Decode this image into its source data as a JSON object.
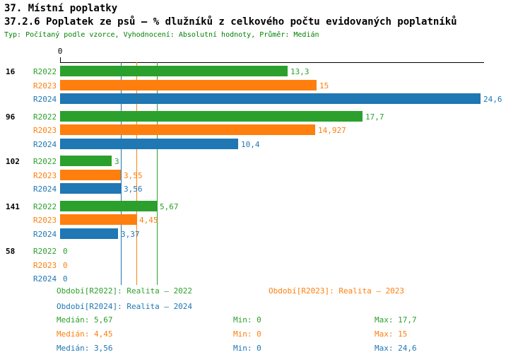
{
  "header": {
    "title": "37. Místní poplatky",
    "subtitle": "37.2.6 Poplatek ze psů – % dlužníků z celkového počtu evidovaných poplatníků",
    "meta": "Typ: Počítaný podle vzorce, Vyhodnocení: Absolutní hodnoty, Průměr: Medián"
  },
  "colors": {
    "R2022": "#2ca02c",
    "R2023": "#ff7f0e",
    "R2024": "#1f77b4",
    "meta_text": "#008000",
    "axis": "#000000"
  },
  "chart_data": {
    "type": "bar",
    "orientation": "horizontal",
    "xlim": [
      0,
      24.8
    ],
    "x_axis_zero_label": "0",
    "grid": false,
    "series": [
      "R2022",
      "R2023",
      "R2024"
    ],
    "groups": [
      {
        "label": "16",
        "values": [
          13.3,
          15,
          24.6
        ],
        "value_labels": [
          "13,3",
          "15",
          "24,6"
        ]
      },
      {
        "label": "96",
        "values": [
          17.7,
          14.927,
          10.4
        ],
        "value_labels": [
          "17,7",
          "14,927",
          "10,4"
        ]
      },
      {
        "label": "102",
        "values": [
          3,
          3.55,
          3.56
        ],
        "value_labels": [
          "3",
          "3,55",
          "3,56"
        ]
      },
      {
        "label": "141",
        "values": [
          5.67,
          4.45,
          3.37
        ],
        "value_labels": [
          "5,67",
          "4,45",
          "3,37"
        ]
      },
      {
        "label": "58",
        "values": [
          0,
          0,
          0
        ],
        "value_labels": [
          "0",
          "0",
          "0"
        ]
      }
    ],
    "median_lines": [
      {
        "series": "R2022",
        "value": 5.67
      },
      {
        "series": "R2023",
        "value": 4.45
      },
      {
        "series": "R2024",
        "value": 3.56
      }
    ]
  },
  "legend": {
    "items": [
      {
        "series": "R2022",
        "label": "Období[R2022]: Realita – 2022"
      },
      {
        "series": "R2023",
        "label": "Období[R2023]: Realita – 2023"
      },
      {
        "series": "R2024",
        "label": "Období[R2024]: Realita – 2024"
      }
    ]
  },
  "stats": {
    "rows": [
      {
        "series": "R2022",
        "median": "Medián: 5,67",
        "min": "Min: 0",
        "max": "Max: 17,7"
      },
      {
        "series": "R2023",
        "median": "Medián: 4,45",
        "min": "Min: 0",
        "max": "Max: 15"
      },
      {
        "series": "R2024",
        "median": "Medián: 3,56",
        "min": "Min: 0",
        "max": "Max: 24,6"
      }
    ]
  }
}
